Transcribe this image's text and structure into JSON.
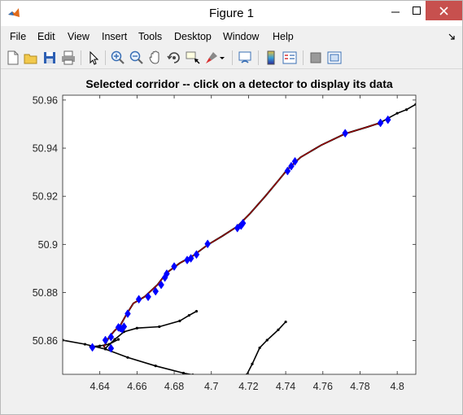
{
  "window": {
    "title": "Figure 1",
    "icon": "matlab-icon"
  },
  "menu": {
    "items": [
      "File",
      "Edit",
      "View",
      "Insert",
      "Tools",
      "Desktop",
      "Window",
      "Help"
    ],
    "overflow_icon": "dock-arrow-icon"
  },
  "toolbar": {
    "buttons": [
      "new-figure-icon",
      "open-file-icon",
      "save-icon",
      "print-icon",
      "edit-plot-arrow-icon",
      "zoom-in-icon",
      "zoom-out-icon",
      "pan-hand-icon",
      "rotate-3d-icon",
      "data-cursor-icon",
      "brush-icon",
      "link-plot-icon",
      "insert-colorbar-icon",
      "insert-legend-icon",
      "hide-plot-tools-icon",
      "show-plot-tools-icon"
    ]
  },
  "colors": {
    "titlebar_bg": "#ffffff",
    "close_button": "#c7504e",
    "figure_bg": "#f0f0f0",
    "axes_bg": "#ffffff",
    "road_black": "#000000",
    "corridor_red": "#c00000",
    "detector_blue": "#0000ff"
  },
  "chart_data": {
    "type": "line",
    "title": "Selected corridor -- click on a detector to display its data",
    "xlabel": "",
    "ylabel": "",
    "xlim": [
      4.62,
      4.81
    ],
    "ylim": [
      50.846,
      50.962
    ],
    "xticks": [
      4.64,
      4.66,
      4.68,
      4.7,
      4.72,
      4.74,
      4.76,
      4.78,
      4.8
    ],
    "xtick_labels": [
      "4.64",
      "4.66",
      "4.68",
      "4.7",
      "4.72",
      "4.74",
      "4.76",
      "4.78",
      "4.8"
    ],
    "yticks": [
      50.86,
      50.88,
      50.9,
      50.92,
      50.94,
      50.96
    ],
    "ytick_labels": [
      "50.86",
      "50.88",
      "50.9",
      "50.92",
      "50.94",
      "50.96"
    ],
    "grid": false,
    "legend": "none",
    "series": [
      {
        "role": "road-network",
        "color": "#000000",
        "lines": [
          [
            [
              4.62,
              50.8602
            ],
            [
              4.632,
              50.8585
            ],
            [
              4.643,
              50.8565
            ],
            [
              4.655,
              50.853
            ],
            [
              4.67,
              50.8495
            ],
            [
              4.685,
              50.8465
            ],
            [
              4.69,
              50.8458
            ]
          ],
          [
            [
              4.643,
              50.8568
            ],
            [
              4.648,
              50.8605
            ],
            [
              4.653,
              50.8637
            ],
            [
              4.66,
              50.8652
            ],
            [
              4.672,
              50.8658
            ],
            [
              4.683,
              50.8682
            ],
            [
              4.688,
              50.8705
            ],
            [
              4.692,
              50.8722
            ]
          ],
          [
            [
              4.719,
              50.8458
            ],
            [
              4.722,
              50.8503
            ],
            [
              4.726,
              50.857
            ],
            [
              4.73,
              50.8602
            ],
            [
              4.736,
              50.8645
            ],
            [
              4.74,
              50.8678
            ]
          ],
          [
            [
              4.79,
              50.9502
            ],
            [
              4.795,
              50.9524
            ],
            [
              4.8,
              50.9545
            ],
            [
              4.805,
              50.956
            ],
            [
              4.81,
              50.9582
            ]
          ],
          [
            [
              4.635,
              50.8575
            ],
            [
              4.64,
              50.8578
            ],
            [
              4.645,
              50.8585
            ],
            [
              4.65,
              50.8605
            ]
          ]
        ]
      },
      {
        "role": "selected-corridor",
        "color": "#c00000",
        "points": [
          [
            4.642,
            50.8572
          ],
          [
            4.645,
            50.8615
          ],
          [
            4.648,
            50.8642
          ],
          [
            4.651,
            50.8663
          ],
          [
            4.654,
            50.8705
          ],
          [
            4.658,
            50.8755
          ],
          [
            4.664,
            50.8782
          ],
          [
            4.671,
            50.8832
          ],
          [
            4.676,
            50.8882
          ],
          [
            4.683,
            50.8922
          ],
          [
            4.69,
            50.8952
          ],
          [
            4.698,
            50.8998
          ],
          [
            4.706,
            50.9035
          ],
          [
            4.714,
            50.9075
          ],
          [
            4.721,
            50.913
          ],
          [
            4.729,
            50.92
          ],
          [
            4.736,
            50.9265
          ],
          [
            4.741,
            50.9312
          ],
          [
            4.748,
            50.9362
          ],
          [
            4.759,
            50.9412
          ],
          [
            4.772,
            50.946
          ],
          [
            4.784,
            50.9488
          ],
          [
            4.792,
            50.9508
          ]
        ]
      },
      {
        "role": "detectors",
        "color": "#0000ff",
        "points": [
          [
            4.636,
            50.8572
          ],
          [
            4.643,
            50.8602
          ],
          [
            4.646,
            50.8615
          ],
          [
            4.65,
            50.8655
          ],
          [
            4.651,
            50.8652
          ],
          [
            4.652,
            50.8648
          ],
          [
            4.653,
            50.8658
          ],
          [
            4.655,
            50.8712
          ],
          [
            4.661,
            50.8772
          ],
          [
            4.666,
            50.8782
          ],
          [
            4.67,
            50.8805
          ],
          [
            4.673,
            50.8832
          ],
          [
            4.675,
            50.8862
          ],
          [
            4.676,
            50.8878
          ],
          [
            4.68,
            50.8908
          ],
          [
            4.687,
            50.8935
          ],
          [
            4.689,
            50.8942
          ],
          [
            4.692,
            50.8958
          ],
          [
            4.698,
            50.9002
          ],
          [
            4.714,
            50.9068
          ],
          [
            4.716,
            50.9078
          ],
          [
            4.717,
            50.9088
          ],
          [
            4.741,
            50.9305
          ],
          [
            4.743,
            50.9325
          ],
          [
            4.745,
            50.9345
          ],
          [
            4.772,
            50.9462
          ],
          [
            4.791,
            50.9505
          ],
          [
            4.795,
            50.9518
          ],
          [
            4.646,
            50.8568
          ]
        ]
      }
    ]
  }
}
